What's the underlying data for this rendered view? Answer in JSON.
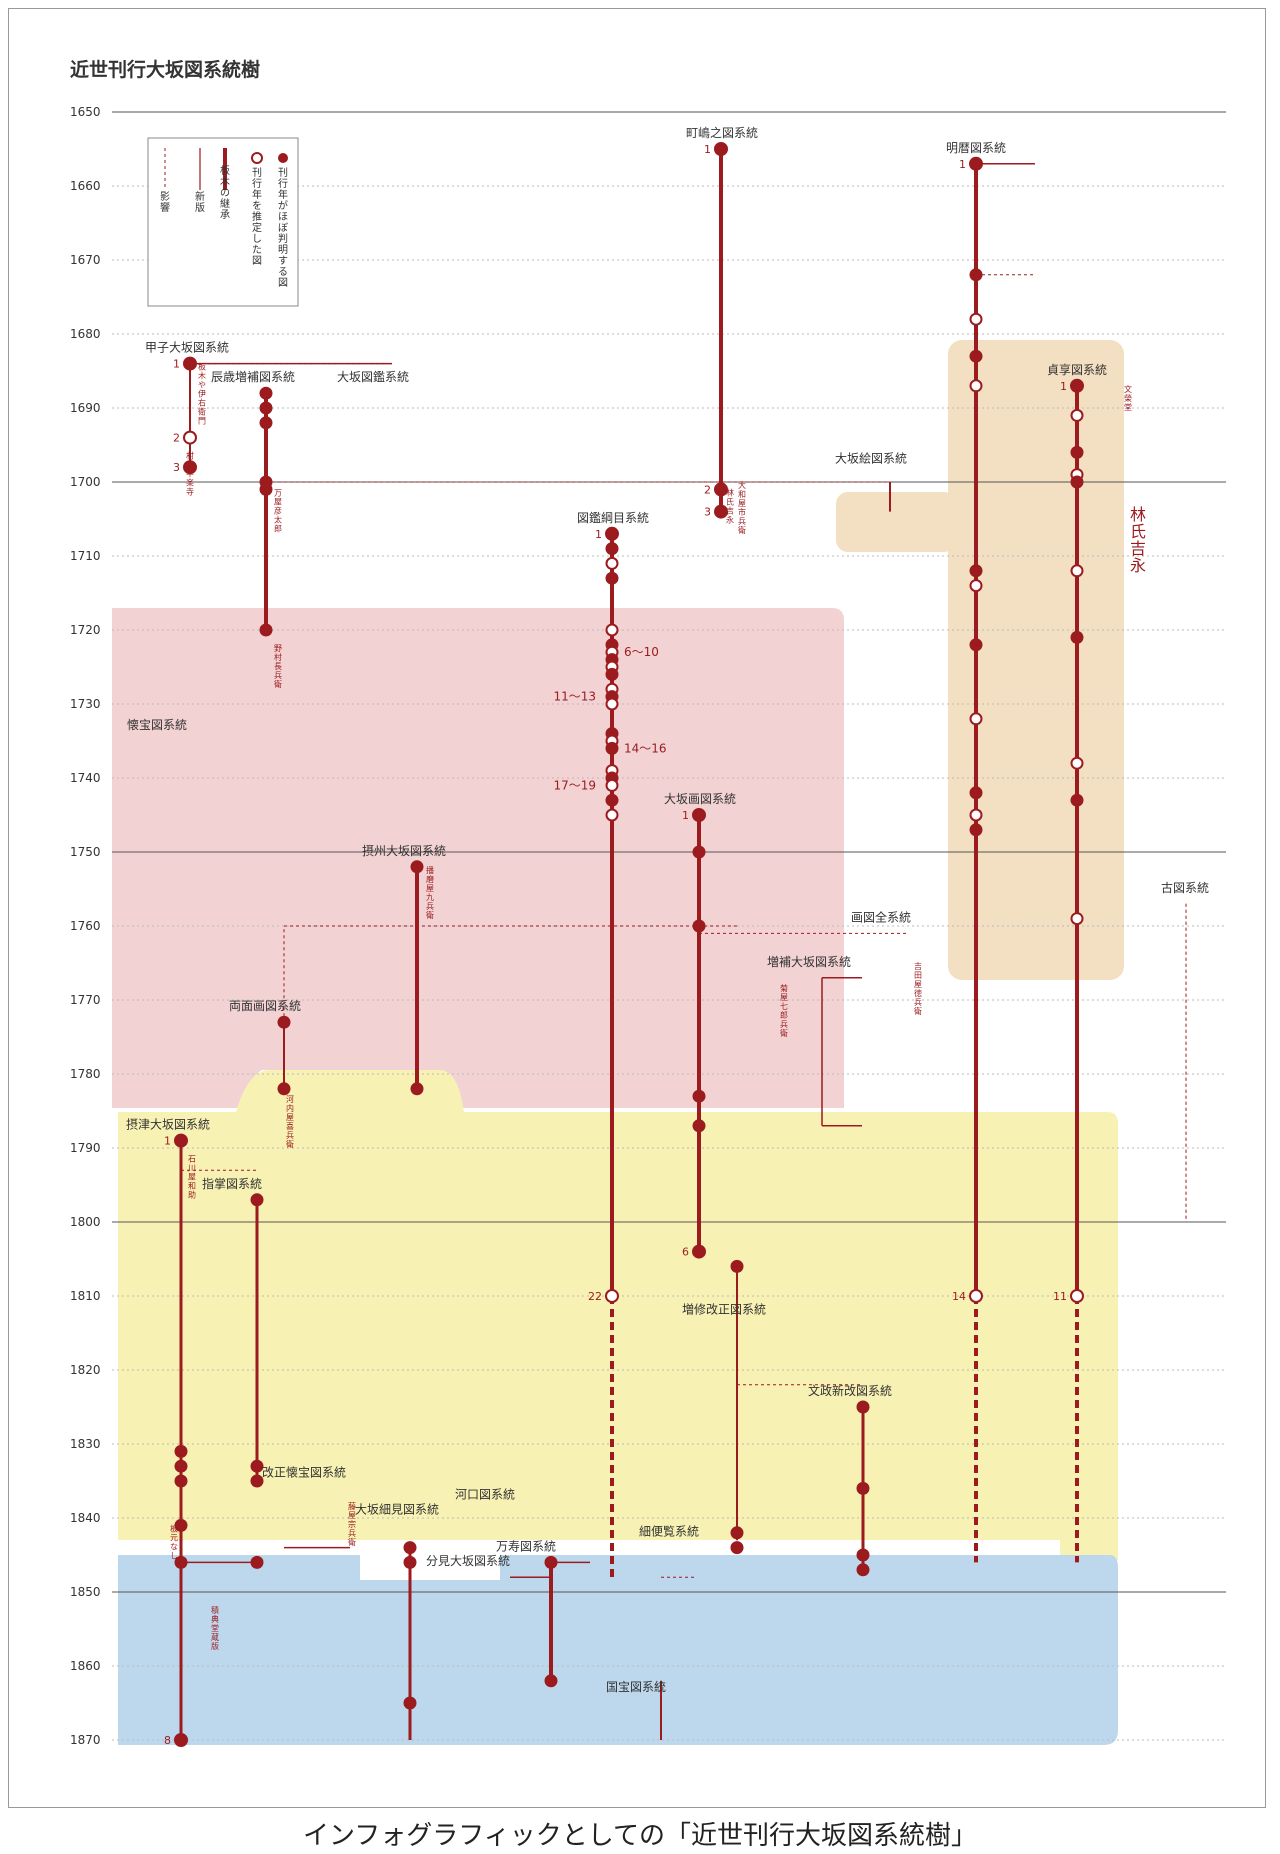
{
  "title": "近世刊行大坂図系統樹",
  "caption": "インフォグラフィックとしての「近世刊行大坂図系統樹」",
  "colors": {
    "main": "#9b1b1f",
    "pink": "#f2d2d2",
    "yellow": "#f7f2b4",
    "blue": "#bdd8ec",
    "tan": "#f3dfc2"
  },
  "years": [
    "1650",
    "1660",
    "1670",
    "1680",
    "1690",
    "1700",
    "1710",
    "1720",
    "1730",
    "1740",
    "1750",
    "1760",
    "1770",
    "1780",
    "1790",
    "1800",
    "1810",
    "1820",
    "1830",
    "1840",
    "1850",
    "1860",
    "1870"
  ],
  "legend": {
    "known": "刊行年がほぼ判明する図",
    "estimated": "刊行年を推定した図",
    "block": "板木の継承",
    "newed": "新版",
    "influence": "影響"
  },
  "group_label": "林氏吉永",
  "lineages": [
    {
      "name": "甲子大坂図系統",
      "year": "1684"
    },
    {
      "name": "辰歳増補図系統",
      "year": "1688"
    },
    {
      "name": "大坂図鑑系統",
      "year": "1688"
    },
    {
      "name": "町嶋之図系統",
      "year": "1655"
    },
    {
      "name": "明暦図系統",
      "year": "1657"
    },
    {
      "name": "貞享図系統",
      "year": "1687"
    },
    {
      "name": "大坂絵図系統",
      "year": "1699"
    },
    {
      "name": "図鑑綱目系統",
      "year": "1707"
    },
    {
      "name": "懐宝図系統",
      "year": "1735"
    },
    {
      "name": "大坂画図系統",
      "year": "1745"
    },
    {
      "name": "摂州大坂図系統",
      "year": "1752"
    },
    {
      "name": "画図全系統",
      "year": "1761"
    },
    {
      "name": "増補大坂図系統",
      "year": "1767"
    },
    {
      "name": "両面画図系統",
      "year": "1773"
    },
    {
      "name": "古図系統",
      "year": "1757"
    },
    {
      "name": "摂津大坂図系統",
      "year": "1789"
    },
    {
      "name": "指掌図系統",
      "year": "1797"
    },
    {
      "name": "増修改正図系統",
      "year": "1814"
    },
    {
      "name": "文政新改図系統",
      "year": "1825"
    },
    {
      "name": "改正懐宝図系統",
      "year": "1836"
    },
    {
      "name": "河口図系統",
      "year": "1839"
    },
    {
      "name": "大坂細見図系統",
      "year": "1841"
    },
    {
      "name": "細便覧系統",
      "year": "1844"
    },
    {
      "name": "万寿図系統",
      "year": "1846"
    },
    {
      "name": "分見大坂図系統",
      "year": "1848"
    },
    {
      "name": "国宝図系統",
      "year": "1865"
    }
  ],
  "nodes": [
    {
      "label": "1",
      "year": "1684",
      "lineage": "甲子大坂図系統"
    },
    {
      "label": "2",
      "year": "1694",
      "lineage": "甲子大坂図系統"
    },
    {
      "label": "3",
      "year": "1698",
      "lineage": "甲子大坂図系統"
    },
    {
      "label": "1",
      "year": "1655",
      "lineage": "町嶋之図系統"
    },
    {
      "label": "2",
      "year": "1701",
      "lineage": "町嶋之図系統"
    },
    {
      "label": "3",
      "year": "1704",
      "lineage": "町嶋之図系統"
    },
    {
      "label": "1",
      "year": "1657",
      "lineage": "明暦図系統"
    },
    {
      "label": "14",
      "year": "1810",
      "lineage": "明暦図系統"
    },
    {
      "label": "1",
      "year": "1687",
      "lineage": "貞享図系統"
    },
    {
      "label": "11",
      "year": "1810",
      "lineage": "貞享図系統"
    },
    {
      "label": "1",
      "year": "1707",
      "lineage": "図鑑綱目系統"
    },
    {
      "label": "22",
      "year": "1810",
      "lineage": "図鑑綱目系統"
    },
    {
      "label": "1",
      "year": "1745",
      "lineage": "大坂画図系統"
    },
    {
      "label": "6",
      "year": "1804",
      "lineage": "大坂画図系統"
    },
    {
      "label": "1",
      "year": "1789",
      "lineage": "摂津大坂図系統"
    },
    {
      "label": "8",
      "year": "1870",
      "lineage": "摂津大坂図系統"
    }
  ],
  "range_labels": [
    "6〜10",
    "11〜13",
    "14〜16",
    "17〜19"
  ],
  "publishers": [
    "板木や伊右衛門",
    "村上平楽寺",
    "万屋彦太郎",
    "野村長兵衛",
    "播磨屋九兵衛",
    "河内屋喜兵衛",
    "石川屋和助",
    "板元なし",
    "林氏吉永",
    "文榮堂",
    "積典堂蔵版",
    "大和屋市兵衛",
    "菊屋七郎兵衛",
    "吉田屋徳兵衛",
    "藤屋宗兵衛"
  ]
}
